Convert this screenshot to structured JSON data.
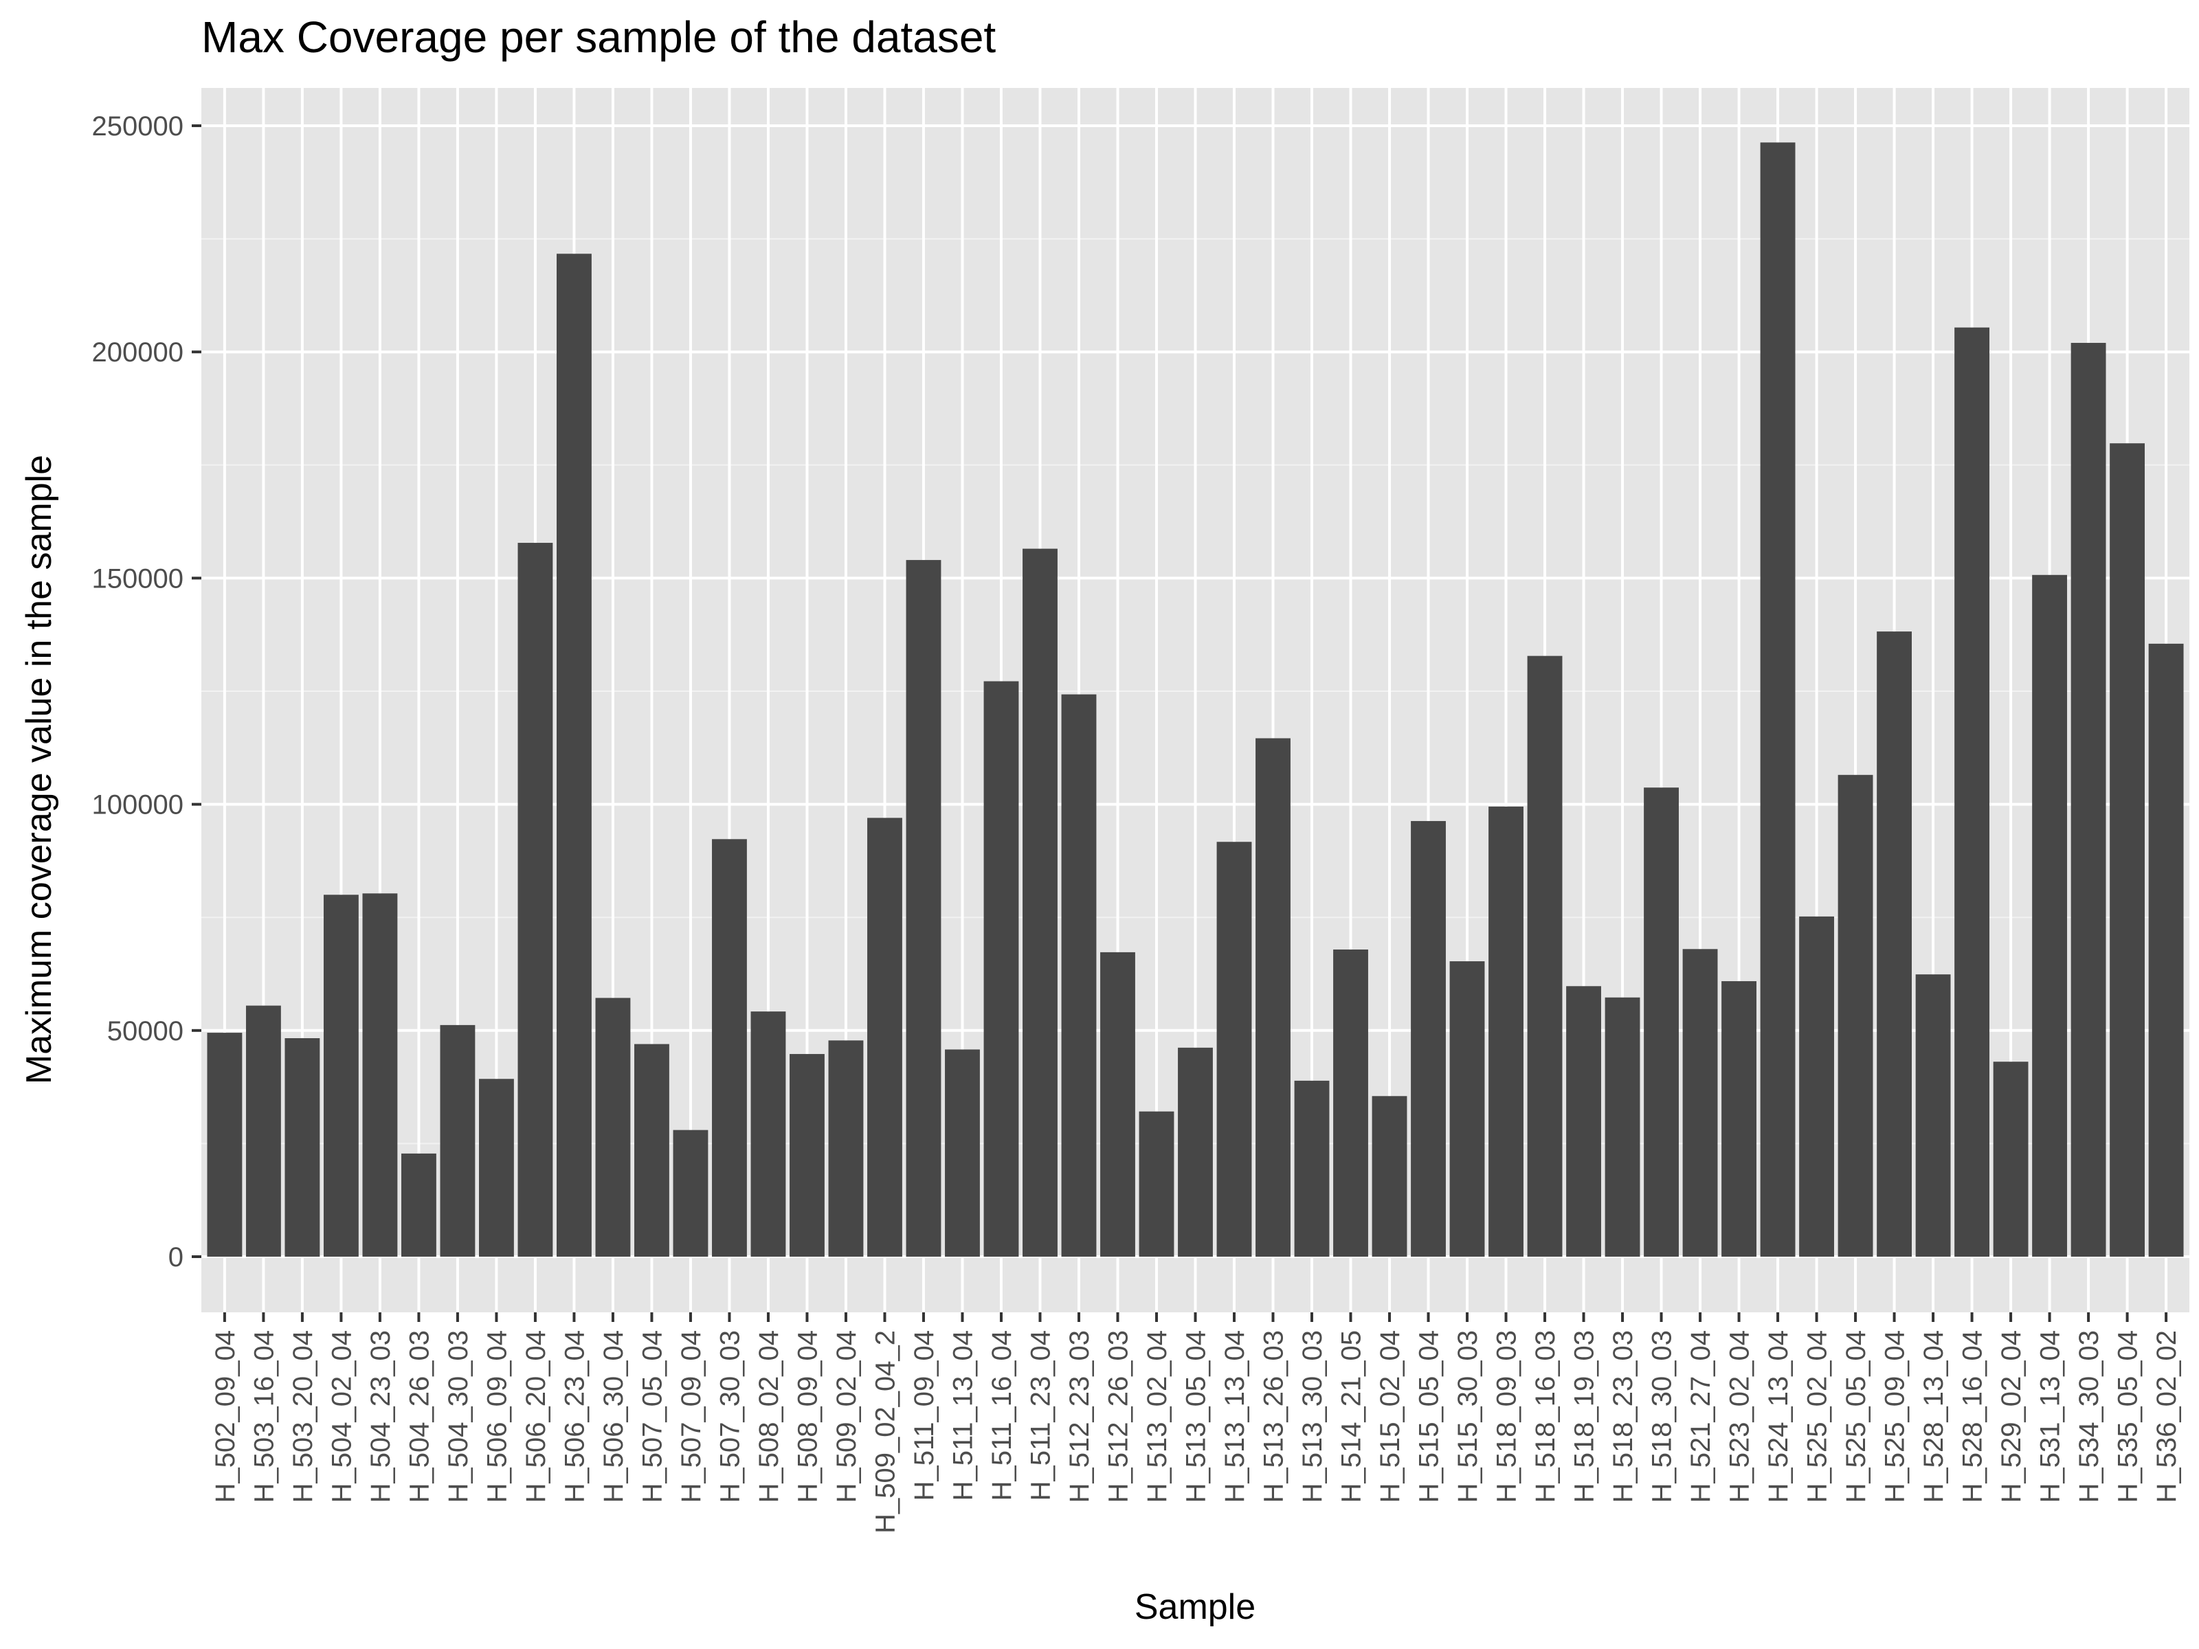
{
  "chart_data": {
    "type": "bar",
    "title": "Max Coverage per sample of the dataset",
    "xlabel": "Sample",
    "ylabel": "Maximum coverage value in the sample",
    "ylim": [
      0,
      258000
    ],
    "yticks": [
      0,
      50000,
      100000,
      150000,
      200000,
      250000
    ],
    "ytick_labels": [
      "0",
      "50000",
      "100000",
      "150000",
      "200000",
      "250000"
    ],
    "grid": true,
    "legend": "none",
    "colors": {
      "bar": "#474747",
      "panel": "#e5e5e5",
      "grid_major": "#ffffff",
      "grid_minor": "#f2f2f2",
      "tick": "#333333",
      "tick_text": "#4d4d4d"
    },
    "categories": [
      "H_502_09_04",
      "H_503_16_04",
      "H_503_20_04",
      "H_504_02_04",
      "H_504_23_03",
      "H_504_26_03",
      "H_504_30_03",
      "H_506_09_04",
      "H_506_20_04",
      "H_506_23_04",
      "H_506_30_04",
      "H_507_05_04",
      "H_507_09_04",
      "H_507_30_03",
      "H_508_02_04",
      "H_508_09_04",
      "H_509_02_04",
      "H_509_02_04_2",
      "H_511_09_04",
      "H_511_13_04",
      "H_511_16_04",
      "H_511_23_04",
      "H_512_23_03",
      "H_512_26_03",
      "H_513_02_04",
      "H_513_05_04",
      "H_513_13_04",
      "H_513_26_03",
      "H_513_30_03",
      "H_514_21_05",
      "H_515_02_04",
      "H_515_05_04",
      "H_515_30_03",
      "H_518_09_03",
      "H_518_16_03",
      "H_518_19_03",
      "H_518_23_03",
      "H_518_30_03",
      "H_521_27_04",
      "H_523_02_04",
      "H_524_13_04",
      "H_525_02_04",
      "H_525_05_04",
      "H_525_09_04",
      "H_528_13_04",
      "H_528_16_04",
      "H_529_02_04",
      "H_531_13_04",
      "H_534_30_03",
      "H_535_05_04",
      "H_536_02_02"
    ],
    "values": [
      49500,
      55500,
      48300,
      80000,
      80300,
      22800,
      51200,
      39300,
      157800,
      221700,
      57200,
      47000,
      28000,
      92300,
      54200,
      44800,
      47800,
      97000,
      154000,
      45800,
      127200,
      156500,
      124300,
      67300,
      32100,
      46200,
      91700,
      114600,
      38900,
      67900,
      35500,
      96300,
      65300,
      99500,
      132800,
      59800,
      57300,
      103700,
      68000,
      60900,
      246300,
      75200,
      106500,
      138200,
      62400,
      205400,
      43100,
      150700,
      202000,
      179800,
      135500
    ]
  }
}
